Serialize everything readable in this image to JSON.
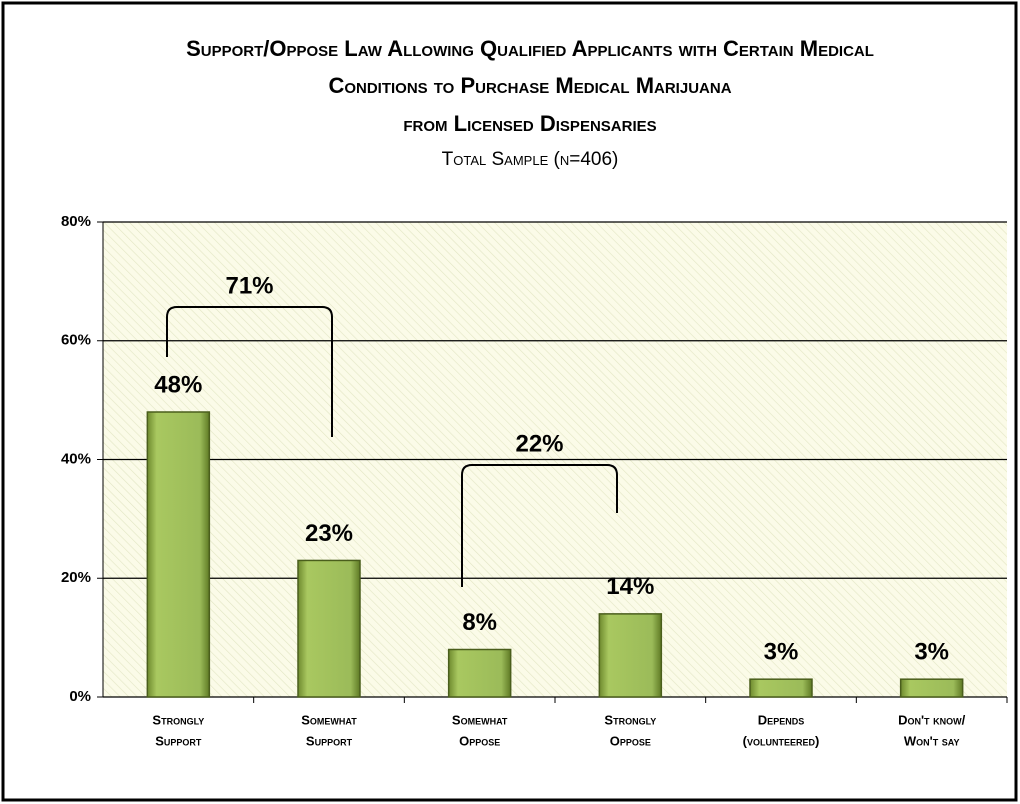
{
  "chart_data": {
    "type": "bar",
    "title": [
      "Support/Oppose Law Allowing Qualified Applicants with Certain Medical",
      "Conditions to Purchase Medical Marijuana",
      "from Licensed Dispensaries"
    ],
    "subtitle": "Total Sample (n=406)",
    "categories": [
      [
        "Strongly",
        "Support"
      ],
      [
        "Somewhat",
        "Support"
      ],
      [
        "Somewhat",
        "Oppose"
      ],
      [
        "Strongly",
        "Oppose"
      ],
      [
        "Depends",
        "(volunteered)"
      ],
      [
        "Don't know/",
        "Won't say"
      ]
    ],
    "values": [
      48,
      23,
      8,
      14,
      3,
      3
    ],
    "value_labels": [
      "48%",
      "23%",
      "8%",
      "14%",
      "3%",
      "3%"
    ],
    "color": "#9bbb59",
    "annotations": [
      "71%",
      "22%"
    ],
    "ylim": [
      0,
      80
    ],
    "yticks": [
      {
        "value": 0,
        "label": "0%"
      },
      {
        "value": 20,
        "label": "20%"
      },
      {
        "value": 40,
        "label": "40%"
      },
      {
        "value": 60,
        "label": "60%"
      },
      {
        "value": 80,
        "label": "80%"
      }
    ],
    "grid": true
  }
}
